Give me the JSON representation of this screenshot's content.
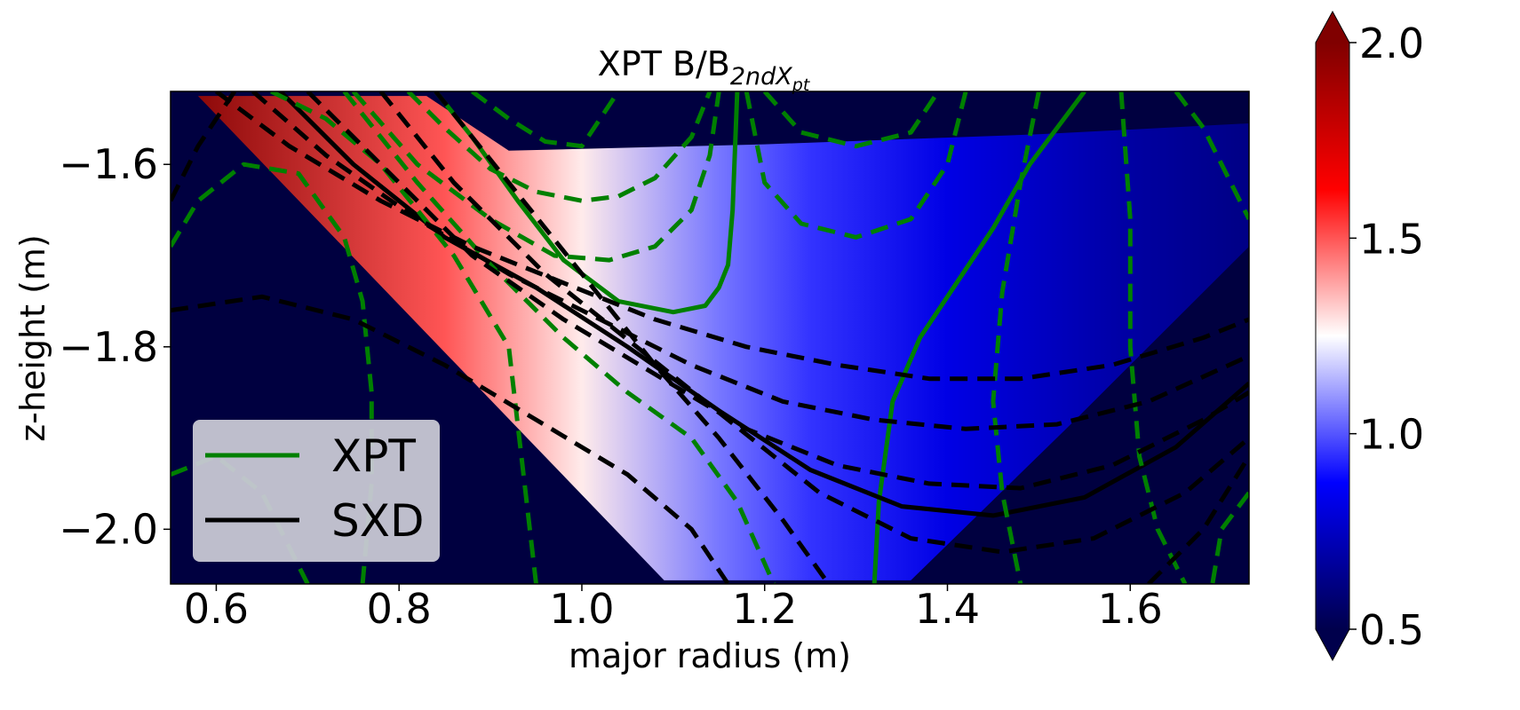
{
  "chart_data": {
    "type": "heatmap",
    "title": {
      "main": "XPT B/B",
      "subscript_base": "2nd",
      "subscript_x": "X",
      "subscript_pt": "pt"
    },
    "xlabel": "major radius (m)",
    "ylabel": "z-height (m)",
    "xlim": [
      0.55,
      1.73
    ],
    "ylim": [
      -2.06,
      -1.52
    ],
    "xticks": [
      {
        "value": 0.6,
        "label": "0.6"
      },
      {
        "value": 0.8,
        "label": "0.8"
      },
      {
        "value": 1.0,
        "label": "1.0"
      },
      {
        "value": 1.2,
        "label": "1.2"
      },
      {
        "value": 1.4,
        "label": "1.4"
      },
      {
        "value": 1.6,
        "label": "1.6"
      }
    ],
    "yticks": [
      {
        "value": -1.6,
        "label": "−1.6"
      },
      {
        "value": -1.8,
        "label": "−1.8"
      },
      {
        "value": -2.0,
        "label": "−2.0"
      }
    ],
    "colorbar": {
      "cmap": "seismic",
      "vmin": 0.5,
      "vmax": 2.0,
      "extend": "both",
      "ticks": [
        {
          "value": 0.5,
          "label": "0.5"
        },
        {
          "value": 1.0,
          "label": "1.0"
        },
        {
          "value": 1.5,
          "label": "1.5"
        },
        {
          "value": 2.0,
          "label": "2.0"
        }
      ]
    },
    "field_profile": {
      "R": [
        0.55,
        0.85,
        1.0,
        1.15,
        1.25,
        1.4,
        1.6,
        1.73
      ],
      "value": [
        2.0,
        1.5,
        1.28,
        1.05,
        0.95,
        0.82,
        0.68,
        0.62
      ]
    },
    "domain_outline": {
      "R": [
        0.58,
        0.83,
        0.92,
        1.2,
        1.5,
        1.73,
        1.73,
        1.54,
        1.36,
        1.09,
        0.58
      ],
      "Z": [
        -1.525,
        -1.525,
        -1.585,
        -1.578,
        -1.567,
        -1.555,
        -1.69,
        -1.88,
        -2.056,
        -2.056,
        -1.525
      ]
    },
    "legend": {
      "location": "lower left",
      "entries": [
        {
          "label": "XPT",
          "color": "#008000"
        },
        {
          "label": "SXD",
          "color": "#000000"
        }
      ]
    },
    "colors": {
      "XPT": "#008000",
      "SXD": "#000000",
      "outside_domain": "#000040",
      "legend_box": "#c8c8d4"
    },
    "series": [
      {
        "name": "XPT",
        "style": "solid",
        "lines": [
          {
            "R": [
              0.84,
              0.88,
              0.93,
              0.98,
              1.04,
              1.1,
              1.135,
              1.15,
              1.16,
              1.165,
              1.17
            ],
            "Z": [
              -1.52,
              -1.57,
              -1.64,
              -1.705,
              -1.75,
              -1.762,
              -1.755,
              -1.735,
              -1.71,
              -1.65,
              -1.52
            ]
          },
          {
            "R": [
              1.32,
              1.325,
              1.34,
              1.37,
              1.41,
              1.45,
              1.49,
              1.55
            ],
            "Z": [
              -2.06,
              -1.97,
              -1.86,
              -1.79,
              -1.73,
              -1.67,
              -1.6,
              -1.52
            ]
          }
        ]
      },
      {
        "name": "SXD",
        "style": "solid",
        "lines": [
          {
            "R": [
              0.67,
              0.75,
              0.85,
              0.95,
              1.05,
              1.15,
              1.25,
              1.35,
              1.45,
              1.55,
              1.65,
              1.73
            ],
            "Z": [
              -1.52,
              -1.6,
              -1.68,
              -1.735,
              -1.8,
              -1.87,
              -1.935,
              -1.975,
              -1.985,
              -1.965,
              -1.91,
              -1.84
            ]
          }
        ]
      },
      {
        "name": "XPT-dashed-flux",
        "style": "dashed",
        "lines": [
          {
            "R": [
              0.81,
              0.85,
              0.9,
              0.95,
              1.0,
              1.04,
              1.08,
              1.12,
              1.14
            ],
            "Z": [
              -1.52,
              -1.56,
              -1.605,
              -1.63,
              -1.64,
              -1.635,
              -1.615,
              -1.57,
              -1.52
            ]
          },
          {
            "R": [
              0.75,
              0.82,
              0.9,
              0.97,
              1.03,
              1.08,
              1.12,
              1.14,
              1.15
            ],
            "Z": [
              -1.52,
              -1.6,
              -1.66,
              -1.7,
              -1.705,
              -1.69,
              -1.65,
              -1.59,
              -1.52
            ]
          },
          {
            "R": [
              0.88,
              0.92,
              0.96,
              1.0,
              1.04
            ],
            "Z": [
              -1.52,
              -1.55,
              -1.575,
              -1.58,
              -1.52
            ]
          },
          {
            "R": [
              1.18,
              1.2,
              1.24,
              1.3,
              1.36,
              1.4,
              1.42
            ],
            "Z": [
              -1.52,
              -1.62,
              -1.665,
              -1.68,
              -1.66,
              -1.6,
              -1.52
            ]
          },
          {
            "R": [
              1.2,
              1.24,
              1.3,
              1.36,
              1.39
            ],
            "Z": [
              -1.52,
              -1.565,
              -1.58,
              -1.565,
              -1.52
            ]
          },
          {
            "R": [
              0.55,
              0.58,
              0.63,
              0.69,
              0.74,
              0.76,
              0.77,
              0.77,
              0.76
            ],
            "Z": [
              -1.69,
              -1.64,
              -1.6,
              -1.61,
              -1.68,
              -1.75,
              -1.85,
              -1.95,
              -2.06
            ]
          },
          {
            "R": [
              0.66,
              0.72,
              0.78,
              0.86,
              0.92,
              0.95
            ],
            "Z": [
              -1.52,
              -1.55,
              -1.6,
              -1.7,
              -1.8,
              -2.06
            ]
          },
          {
            "R": [
              0.74,
              0.82,
              0.9,
              0.98,
              1.05,
              1.12,
              1.17,
              1.21
            ],
            "Z": [
              -1.52,
              -1.62,
              -1.71,
              -1.79,
              -1.85,
              -1.9,
              -1.97,
              -2.06
            ]
          },
          {
            "R": [
              0.55,
              0.6,
              0.65,
              0.7
            ],
            "Z": [
              -1.94,
              -1.92,
              -1.96,
              -2.06
            ]
          },
          {
            "R": [
              1.5,
              1.48,
              1.46,
              1.45,
              1.46,
              1.48
            ],
            "Z": [
              -1.52,
              -1.62,
              -1.74,
              -1.86,
              -1.96,
              -2.06
            ]
          },
          {
            "R": [
              1.59,
              1.6,
              1.6,
              1.61,
              1.63,
              1.66
            ],
            "Z": [
              -1.52,
              -1.66,
              -1.8,
              -1.92,
              -2.0,
              -2.06
            ]
          },
          {
            "R": [
              1.65,
              1.68,
              1.71,
              1.73
            ],
            "Z": [
              -1.52,
              -1.56,
              -1.62,
              -1.66
            ]
          },
          {
            "R": [
              1.73,
              1.7,
              1.69
            ],
            "Z": [
              -1.96,
              -2.0,
              -2.06
            ]
          }
        ]
      },
      {
        "name": "SXD-dashed-flux",
        "style": "dashed",
        "lines": [
          {
            "R": [
              0.6,
              0.68,
              0.78,
              0.88,
              0.98,
              1.08,
              1.18,
              1.28,
              1.38,
              1.48,
              1.58,
              1.68,
              1.73
            ],
            "Z": [
              -1.52,
              -1.58,
              -1.64,
              -1.69,
              -1.73,
              -1.77,
              -1.8,
              -1.82,
              -1.835,
              -1.835,
              -1.82,
              -1.79,
              -1.77
            ]
          },
          {
            "R": [
              0.64,
              0.72,
              0.82,
              0.92,
              1.02,
              1.12,
              1.22,
              1.32,
              1.42,
              1.52,
              1.62,
              1.73
            ],
            "Z": [
              -1.52,
              -1.59,
              -1.66,
              -1.72,
              -1.77,
              -1.82,
              -1.86,
              -1.88,
              -1.89,
              -1.885,
              -1.86,
              -1.81
            ]
          },
          {
            "R": [
              0.7,
              0.78,
              0.88,
              0.98,
              1.08,
              1.18,
              1.28,
              1.38,
              1.48,
              1.58,
              1.68,
              1.73
            ],
            "Z": [
              -1.52,
              -1.6,
              -1.7,
              -1.77,
              -1.83,
              -1.89,
              -1.93,
              -1.95,
              -1.955,
              -1.93,
              -1.88,
              -1.85
            ]
          },
          {
            "R": [
              0.78,
              0.86,
              0.96,
              1.06,
              1.16,
              1.26,
              1.36,
              1.46,
              1.56,
              1.66,
              1.73
            ],
            "Z": [
              -1.52,
              -1.62,
              -1.72,
              -1.8,
              -1.88,
              -1.96,
              -2.01,
              -2.025,
              -2.01,
              -1.96,
              -1.9
            ]
          },
          {
            "R": [
              0.84,
              0.92,
              1.0,
              1.08,
              1.15,
              1.22,
              1.27
            ],
            "Z": [
              -1.52,
              -1.62,
              -1.72,
              -1.82,
              -1.9,
              -1.99,
              -2.06
            ]
          },
          {
            "R": [
              0.55,
              0.65,
              0.75,
              0.85,
              0.95,
              1.05,
              1.12,
              1.16
            ],
            "Z": [
              -1.76,
              -1.745,
              -1.77,
              -1.82,
              -1.88,
              -1.94,
              -2.0,
              -2.06
            ]
          },
          {
            "R": [
              0.55,
              0.58,
              0.62
            ],
            "Z": [
              -1.64,
              -1.58,
              -1.52
            ]
          },
          {
            "R": [
              1.62,
              1.68,
              1.73
            ],
            "Z": [
              -2.06,
              -2.0,
              -1.92
            ]
          }
        ]
      }
    ]
  }
}
